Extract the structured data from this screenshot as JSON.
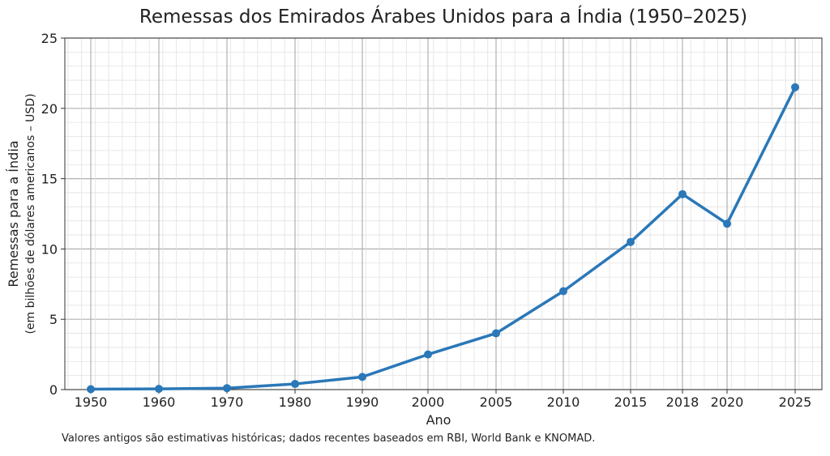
{
  "chart_data": {
    "type": "line",
    "title": "Remessas dos Emirados Árabes Unidos para a Índia (1950–2025)",
    "xlabel": "Ano",
    "ylabel": "Remessas para a Índia",
    "ylabel_sub": "(em bilhões de dólares americanos – USD)",
    "categories": [
      "1950",
      "1960",
      "1970",
      "1980",
      "1990",
      "2000",
      "2005",
      "2010",
      "2015",
      "2018",
      "2020",
      "2025"
    ],
    "values": [
      0.03,
      0.05,
      0.1,
      0.4,
      0.9,
      2.5,
      4.0,
      7.0,
      10.5,
      13.9,
      11.8,
      21.5
    ],
    "ylim": [
      0,
      25
    ],
    "yticks": [
      0,
      5,
      10,
      15,
      20,
      25
    ],
    "grid": true,
    "line_color": "#2a78b8",
    "footnote": "Valores antigos são estimativas históricas; dados recentes baseados em RBI, World Bank e KNOMAD."
  }
}
